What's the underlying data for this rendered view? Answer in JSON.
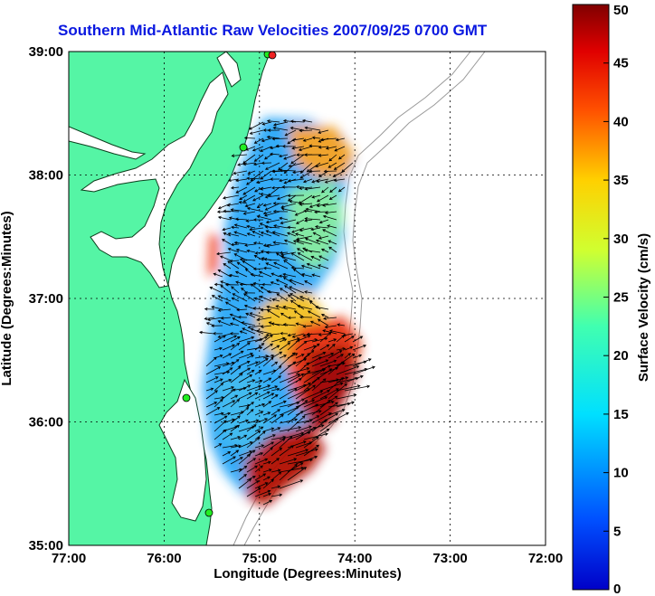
{
  "title": "Southern Mid-Atlantic Raw Velocities 2007/09/25 0700 GMT",
  "map": {
    "xlabel": "Longitude (Degrees:Minutes)",
    "ylabel": "Latitude (Degrees:Minutes)",
    "lon_ticks": [
      {
        "value": -77,
        "label": "77:00"
      },
      {
        "value": -76,
        "label": "76:00"
      },
      {
        "value": -75,
        "label": "75:00"
      },
      {
        "value": -74,
        "label": "74:00"
      },
      {
        "value": -73,
        "label": "73:00"
      },
      {
        "value": -72,
        "label": "72:00"
      }
    ],
    "lat_ticks": [
      {
        "value": 39,
        "label": "39:00"
      },
      {
        "value": 38,
        "label": "38:00"
      },
      {
        "value": 37,
        "label": "37:00"
      },
      {
        "value": 36,
        "label": "36:00"
      },
      {
        "value": 35,
        "label": "35:00"
      }
    ],
    "lon_range": [
      -77,
      -72
    ],
    "lat_range": [
      35,
      39
    ],
    "grid": "dotted",
    "land_color": "#55f5a5",
    "station_color": "#22ee22"
  },
  "colorbar": {
    "label": "Surface Velocity (cm/s)",
    "units": "cm/s",
    "range": [
      0,
      50
    ],
    "ticks": [
      {
        "value": 50,
        "label": "50"
      },
      {
        "value": 45,
        "label": "45"
      },
      {
        "value": 40,
        "label": "40"
      },
      {
        "value": 35,
        "label": "35"
      },
      {
        "value": 30,
        "label": "30"
      },
      {
        "value": 25,
        "label": "25"
      },
      {
        "value": 20,
        "label": "20"
      },
      {
        "value": 15,
        "label": "15"
      },
      {
        "value": 10,
        "label": "10"
      },
      {
        "value": 5,
        "label": "5"
      },
      {
        "value": 0,
        "label": "0"
      }
    ],
    "colormap": "jet"
  }
}
